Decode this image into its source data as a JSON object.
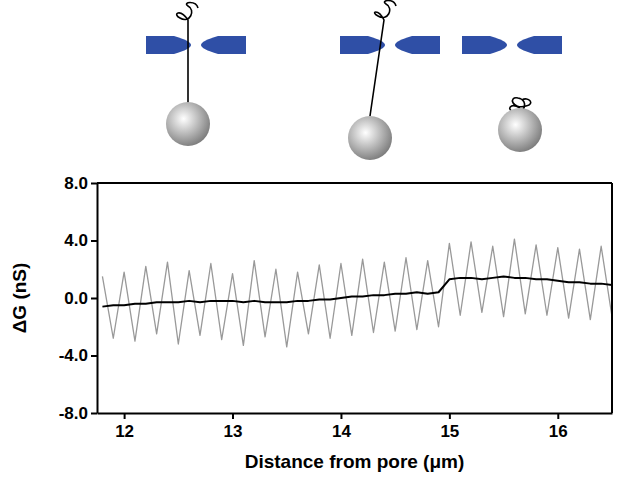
{
  "chart_data": {
    "type": "line",
    "x_label": "Distance from pore (μm)",
    "y_label": "ΔG (nS)",
    "x": [
      11.8,
      11.9,
      12.0,
      12.1,
      12.2,
      12.3,
      12.4,
      12.5,
      12.6,
      12.7,
      12.8,
      12.9,
      13.0,
      13.1,
      13.2,
      13.3,
      13.4,
      13.5,
      13.6,
      13.7,
      13.8,
      13.9,
      14.0,
      14.1,
      14.2,
      14.3,
      14.4,
      14.5,
      14.6,
      14.7,
      14.8,
      14.9,
      15.0,
      15.1,
      15.2,
      15.3,
      15.4,
      15.5,
      15.6,
      15.7,
      15.8,
      15.9,
      16.0,
      16.1,
      16.2,
      16.3,
      16.4,
      16.5
    ],
    "series": [
      {
        "color": "#999999",
        "values": [
          1.5,
          -2.8,
          1.8,
          -3.0,
          2.2,
          -2.5,
          2.5,
          -3.2,
          1.9,
          -2.6,
          2.4,
          -2.9,
          1.7,
          -3.3,
          2.6,
          -2.7,
          2.0,
          -3.4,
          1.8,
          -2.5,
          2.3,
          -2.8,
          2.4,
          -2.6,
          2.7,
          -2.4,
          2.5,
          -2.3,
          2.8,
          -2.2,
          2.6,
          -2.0,
          3.8,
          -1.2,
          3.9,
          -1.0,
          3.6,
          -1.3,
          4.1,
          -1.1,
          3.7,
          -1.2,
          3.5,
          -1.4,
          3.4,
          -1.5,
          3.6,
          -1.3
        ]
      },
      {
        "color": "#000000",
        "values": [
          -0.6,
          -0.5,
          -0.5,
          -0.4,
          -0.4,
          -0.3,
          -0.3,
          -0.3,
          -0.2,
          -0.3,
          -0.2,
          -0.2,
          -0.2,
          -0.3,
          -0.2,
          -0.3,
          -0.3,
          -0.3,
          -0.2,
          -0.2,
          -0.1,
          -0.1,
          0.0,
          0.1,
          0.1,
          0.2,
          0.2,
          0.3,
          0.3,
          0.4,
          0.3,
          0.4,
          1.3,
          1.4,
          1.4,
          1.3,
          1.4,
          1.5,
          1.4,
          1.4,
          1.3,
          1.3,
          1.2,
          1.1,
          1.1,
          1.0,
          1.0,
          0.9
        ]
      }
    ],
    "xlim": [
      11.75,
      16.5
    ],
    "xticks": [
      12,
      13,
      14,
      15,
      16
    ],
    "ylim": [
      -8,
      8
    ],
    "yticks": [
      {
        "value": -8,
        "label": "-8.0"
      },
      {
        "value": -4,
        "label": "-4.0"
      },
      {
        "value": 0,
        "label": "0.0"
      },
      {
        "value": 4,
        "label": "4.0"
      },
      {
        "value": 8,
        "label": "8.0"
      }
    ],
    "grid": false
  }
}
